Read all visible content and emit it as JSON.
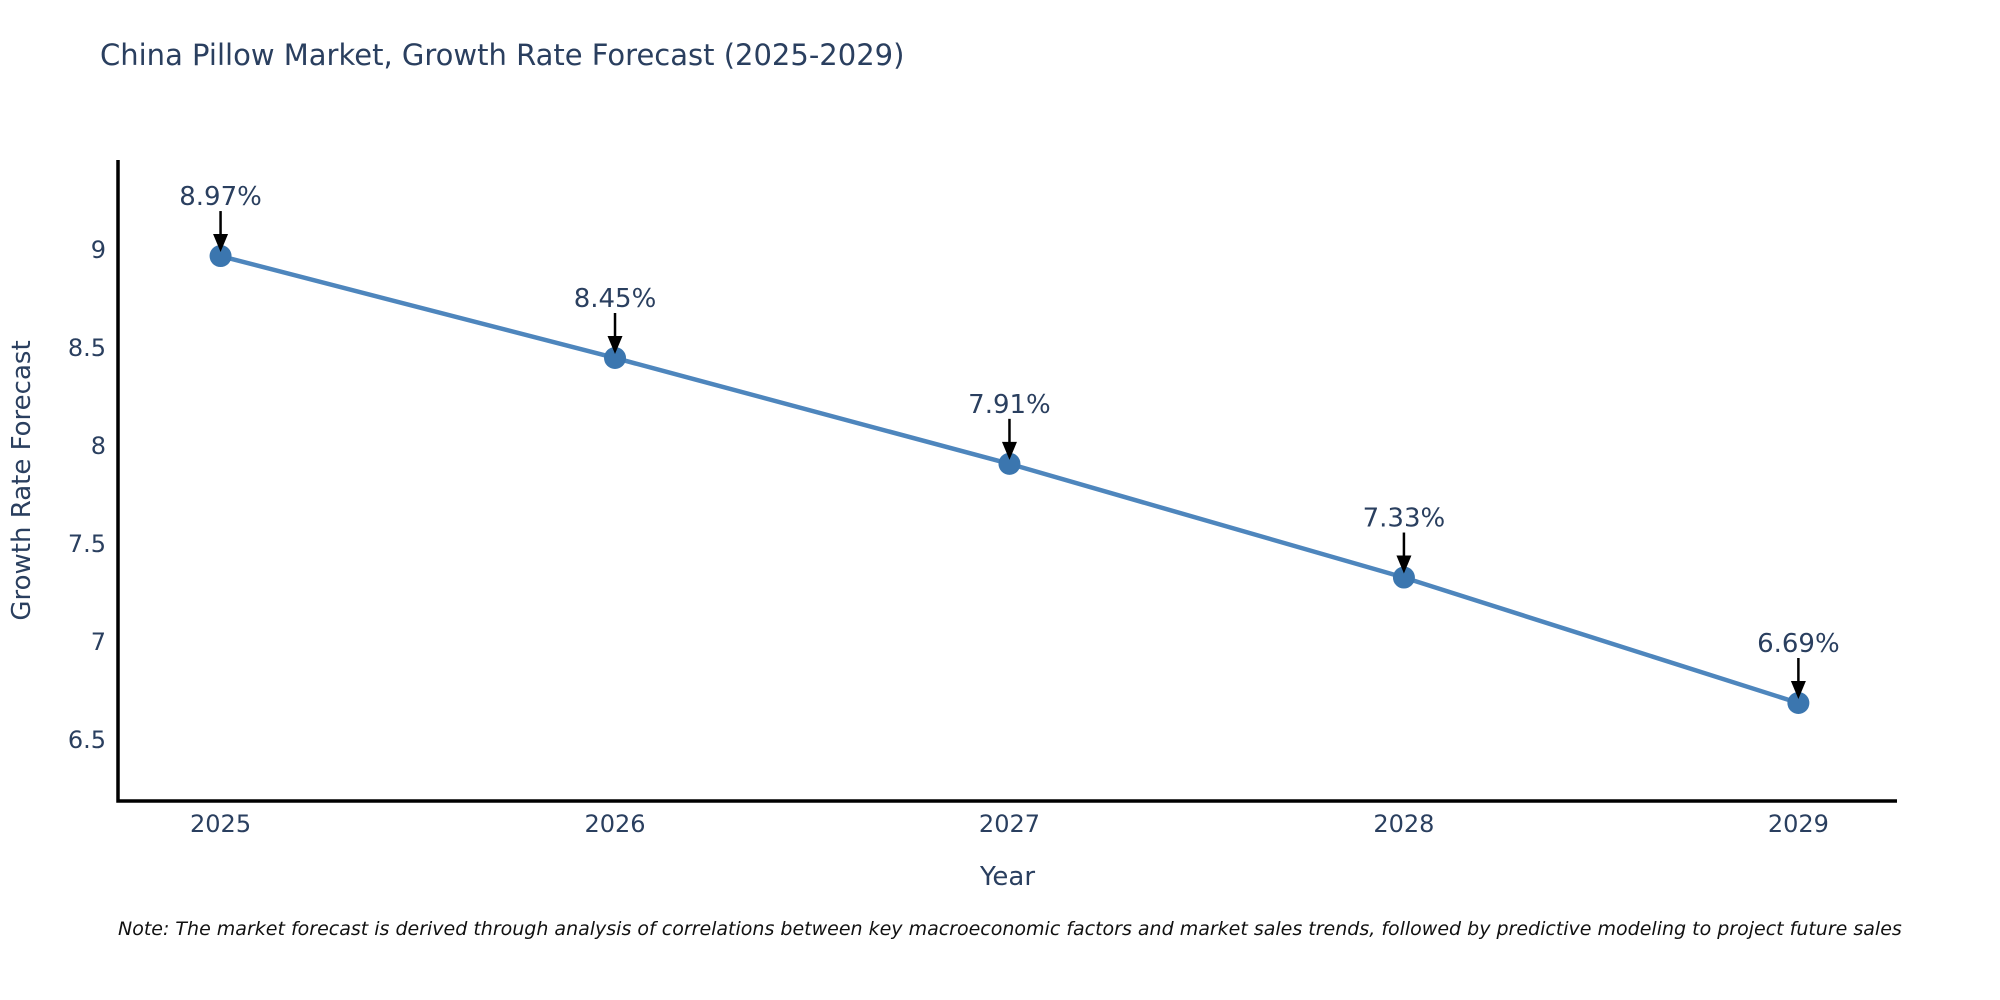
{
  "chart_data": {
    "type": "line",
    "title": "China Pillow Market, Growth Rate Forecast (2025-2029)",
    "xlabel": "Year",
    "ylabel": "Growth Rate Forecast",
    "x": [
      2025,
      2026,
      2027,
      2028,
      2029
    ],
    "values": [
      8.97,
      8.45,
      7.91,
      7.33,
      6.69
    ],
    "point_labels": [
      "8.97%",
      "8.45%",
      "7.91%",
      "7.33%",
      "6.69%"
    ],
    "x_tick_labels": [
      "2025",
      "2026",
      "2027",
      "2028",
      "2029"
    ],
    "y_ticks": [
      6.5,
      7,
      7.5,
      8,
      8.5,
      9
    ],
    "y_tick_labels": [
      "6.5",
      "7",
      "7.5",
      "8",
      "8.5",
      "9"
    ],
    "xlim": [
      2024.74,
      2029.25
    ],
    "ylim": [
      6.19,
      9.46
    ],
    "grid": false,
    "legend_position": "none",
    "line_color": "#4e86bd",
    "marker_color": "#3b76af",
    "axis_color": "#000000",
    "text_color": "#2a3f5f",
    "annotation_arrow_color": "#000000"
  },
  "note": "Note: The market forecast is derived through analysis of correlations between key macroeconomic factors and market sales trends, followed by predictive modeling to project future sales"
}
